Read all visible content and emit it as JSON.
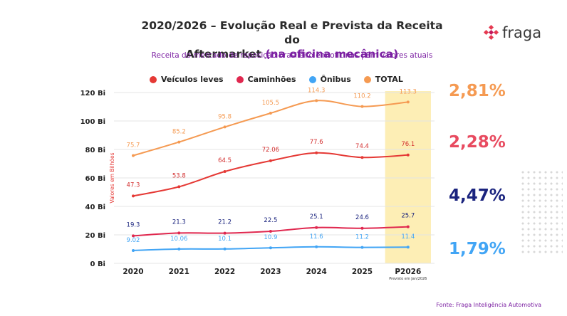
{
  "header": {
    "title_line1": "2020/2026 – Evolução Real e Prevista da Receita do",
    "title_line2_a": "Aftermarket ",
    "title_line2_b": "(na oficina mecânica)",
    "subtitle": "Receita do mercado de reposição brasileiro em oficinas | Em valores atuais"
  },
  "logo": {
    "text": "fraga",
    "color": "#e53950"
  },
  "growth": [
    {
      "value": "2,81%",
      "color": "#f59a52"
    },
    {
      "value": "2,28%",
      "color": "#e84a5f"
    },
    {
      "value": "4,47%",
      "color": "#1a237e"
    },
    {
      "value": "1,79%",
      "color": "#42a5f5"
    }
  ],
  "source": "Fonte: Fraga Inteligência Automotiva",
  "chart_data": {
    "type": "line",
    "categories": [
      "2020",
      "2021",
      "2022",
      "2023",
      "2024",
      "2025",
      "P2026"
    ],
    "ylabel": "Valores em Bilhões",
    "yticks": [
      "0 Bi",
      "20 Bi",
      "40 Bi",
      "60 Bi",
      "80 Bi",
      "100 Bi",
      "120 Bi"
    ],
    "ylim": [
      0,
      120
    ],
    "grid": true,
    "legend_position": "top",
    "highlight_category": "P2026",
    "highlight_color": "#fdeeb5",
    "note": "Previsto em Jan/2026",
    "series": [
      {
        "name": "Veículos leves",
        "color": "#e53935",
        "label_color": "#d32f2f",
        "values": [
          47.3,
          53.8,
          64.5,
          72.06,
          77.6,
          74.4,
          76.1
        ],
        "labels": [
          "47.3",
          "53.8",
          "64.5",
          "72.06",
          "77.6",
          "74.4",
          "76.1"
        ]
      },
      {
        "name": "Caminhões",
        "color": "#e0284f",
        "label_color": "#1a237e",
        "values": [
          19.3,
          21.3,
          21.2,
          22.5,
          25.1,
          24.6,
          25.7
        ],
        "labels": [
          "19.3",
          "21.3",
          "21.2",
          "22.5",
          "25.1",
          "24.6",
          "25.7"
        ]
      },
      {
        "name": "Ônibus",
        "color": "#42a5f5",
        "label_color": "#42a5f5",
        "values": [
          9.02,
          10.06,
          10.1,
          10.9,
          11.6,
          11.2,
          11.4
        ],
        "labels": [
          "9.02",
          "10.06",
          "10.1",
          "10.9",
          "11.6",
          "11.2",
          "11.4"
        ]
      },
      {
        "name": "TOTAL",
        "color": "#f59a52",
        "label_color": "#f59a52",
        "values": [
          75.7,
          85.2,
          95.8,
          105.5,
          114.3,
          110.2,
          113.3
        ],
        "labels": [
          "75.7",
          "85.2",
          "95.8",
          "105.5",
          "114.3",
          "110.2",
          "113.3"
        ]
      }
    ]
  }
}
